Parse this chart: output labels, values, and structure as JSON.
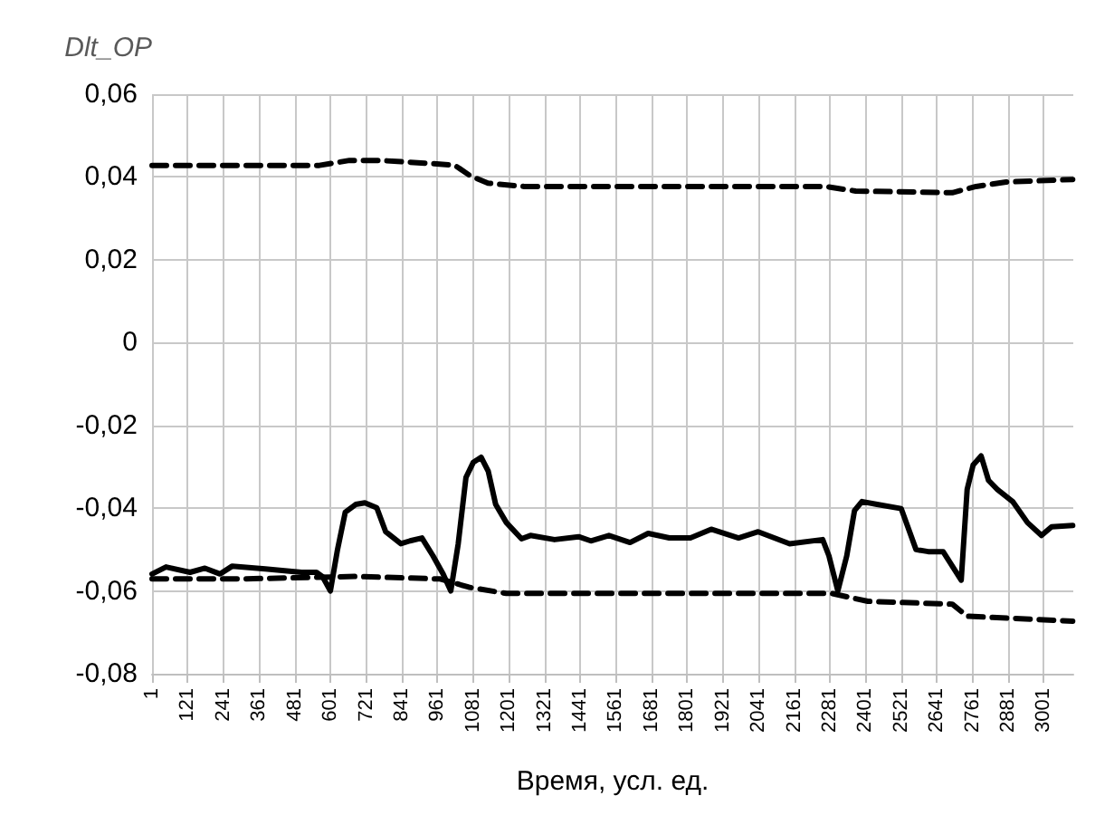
{
  "chart_data": {
    "type": "line",
    "ylabel": "Dlt_OP",
    "xlabel": "Время, усл. ед.",
    "xlim": [
      1,
      3100
    ],
    "xticks": [
      1,
      121,
      241,
      361,
      481,
      601,
      721,
      841,
      961,
      1081,
      1201,
      1321,
      1441,
      1561,
      1681,
      1801,
      1921,
      2041,
      2161,
      2281,
      2401,
      2521,
      2641,
      2761,
      2881,
      3001
    ],
    "ylim": [
      -0.08,
      0.06
    ],
    "yticks": [
      {
        "value": -0.08,
        "label": "-0,08"
      },
      {
        "value": -0.06,
        "label": "-0,06"
      },
      {
        "value": -0.04,
        "label": "-0,04"
      },
      {
        "value": -0.02,
        "label": "-0,02"
      },
      {
        "value": 0,
        "label": "0"
      },
      {
        "value": 0.02,
        "label": "0,02"
      },
      {
        "value": 0.04,
        "label": "0,04"
      },
      {
        "value": 0.06,
        "label": "0,06"
      }
    ],
    "grid": true,
    "marker": "none",
    "series": [
      {
        "color": "#000000",
        "line_style": "solid",
        "x": [
          1,
          48,
          129,
          179,
          230,
          271,
          382,
          504,
          554,
          575,
          601,
          625,
          651,
          686,
          717,
          757,
          787,
          838,
          869,
          909,
          946,
          980,
          1006,
          1031,
          1057,
          1082,
          1108,
          1132,
          1157,
          1193,
          1244,
          1274,
          1355,
          1436,
          1477,
          1538,
          1609,
          1670,
          1741,
          1812,
          1882,
          1974,
          2040,
          2146,
          2257,
          2278,
          2308,
          2338,
          2364,
          2389,
          2440,
          2521,
          2571,
          2612,
          2662,
          2723,
          2743,
          2763,
          2790,
          2815,
          2845,
          2896,
          2946,
          2993,
          3027,
          3098
        ],
        "values": [
          -0.0559,
          -0.0542,
          -0.0555,
          -0.0545,
          -0.0559,
          -0.054,
          -0.0547,
          -0.0555,
          -0.0555,
          -0.0566,
          -0.06,
          -0.05,
          -0.041,
          -0.0391,
          -0.0387,
          -0.0399,
          -0.0457,
          -0.0486,
          -0.0479,
          -0.0472,
          -0.0515,
          -0.0559,
          -0.06,
          -0.0486,
          -0.0326,
          -0.0289,
          -0.0277,
          -0.0311,
          -0.0391,
          -0.0435,
          -0.0474,
          -0.0466,
          -0.0476,
          -0.0469,
          -0.0479,
          -0.0466,
          -0.0483,
          -0.0461,
          -0.0472,
          -0.0472,
          -0.0451,
          -0.0472,
          -0.0457,
          -0.0486,
          -0.0476,
          -0.0515,
          -0.06,
          -0.0515,
          -0.0406,
          -0.0384,
          -0.0391,
          -0.0401,
          -0.05,
          -0.0505,
          -0.0505,
          -0.0574,
          -0.0355,
          -0.0296,
          -0.0274,
          -0.0333,
          -0.0355,
          -0.0384,
          -0.0435,
          -0.0466,
          -0.0445,
          -0.0442
        ]
      },
      {
        "color": "#000000",
        "line_style": "dashed",
        "x": [
          1,
          564,
          665,
          767,
          949,
          1020,
          1071,
          1131,
          1253,
          2266,
          2368,
          2693,
          2773,
          2874,
          3098
        ],
        "values": [
          0.0428,
          0.0428,
          0.044,
          0.044,
          0.0432,
          0.0428,
          0.0403,
          0.0385,
          0.0377,
          0.0377,
          0.0366,
          0.0362,
          0.0377,
          0.0388,
          0.0394
        ]
      },
      {
        "color": "#000000",
        "line_style": "dashed",
        "x": [
          1,
          300,
          686,
          970,
          1067,
          1193,
          2287,
          2409,
          2693,
          2743,
          3098
        ],
        "values": [
          -0.0571,
          -0.0571,
          -0.0565,
          -0.0571,
          -0.0591,
          -0.0606,
          -0.0606,
          -0.0625,
          -0.0632,
          -0.0661,
          -0.0673
        ]
      }
    ]
  }
}
